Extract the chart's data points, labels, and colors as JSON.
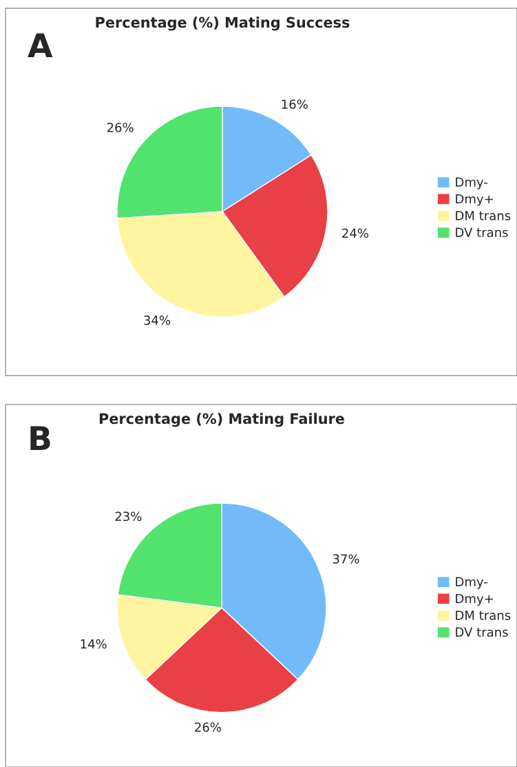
{
  "chart_data": [
    {
      "type": "pie",
      "title": "Percentage (%) Mating Success",
      "categories": [
        "Dmy-",
        "Dmy+",
        "DM trans",
        "DV trans"
      ],
      "values": [
        16,
        24,
        34,
        26
      ],
      "value_labels": [
        "16%",
        "24%",
        "34%",
        "26%"
      ],
      "colors": [
        "#72bbfa",
        "#e84045",
        "#fff5a0",
        "#52e36e"
      ],
      "legend": "right",
      "annotations": [
        "A"
      ]
    },
    {
      "type": "pie",
      "title": "Percentage (%) Mating Failure",
      "categories": [
        "Dmy-",
        "Dmy+",
        "DM trans",
        "DV trans"
      ],
      "values": [
        37,
        26,
        14,
        23
      ],
      "value_labels": [
        "37%",
        "26%",
        "14%",
        "23%"
      ],
      "colors": [
        "#72bbfa",
        "#e84045",
        "#fff5a0",
        "#52e36e"
      ],
      "legend": "right",
      "annotations": [
        "B"
      ]
    }
  ]
}
